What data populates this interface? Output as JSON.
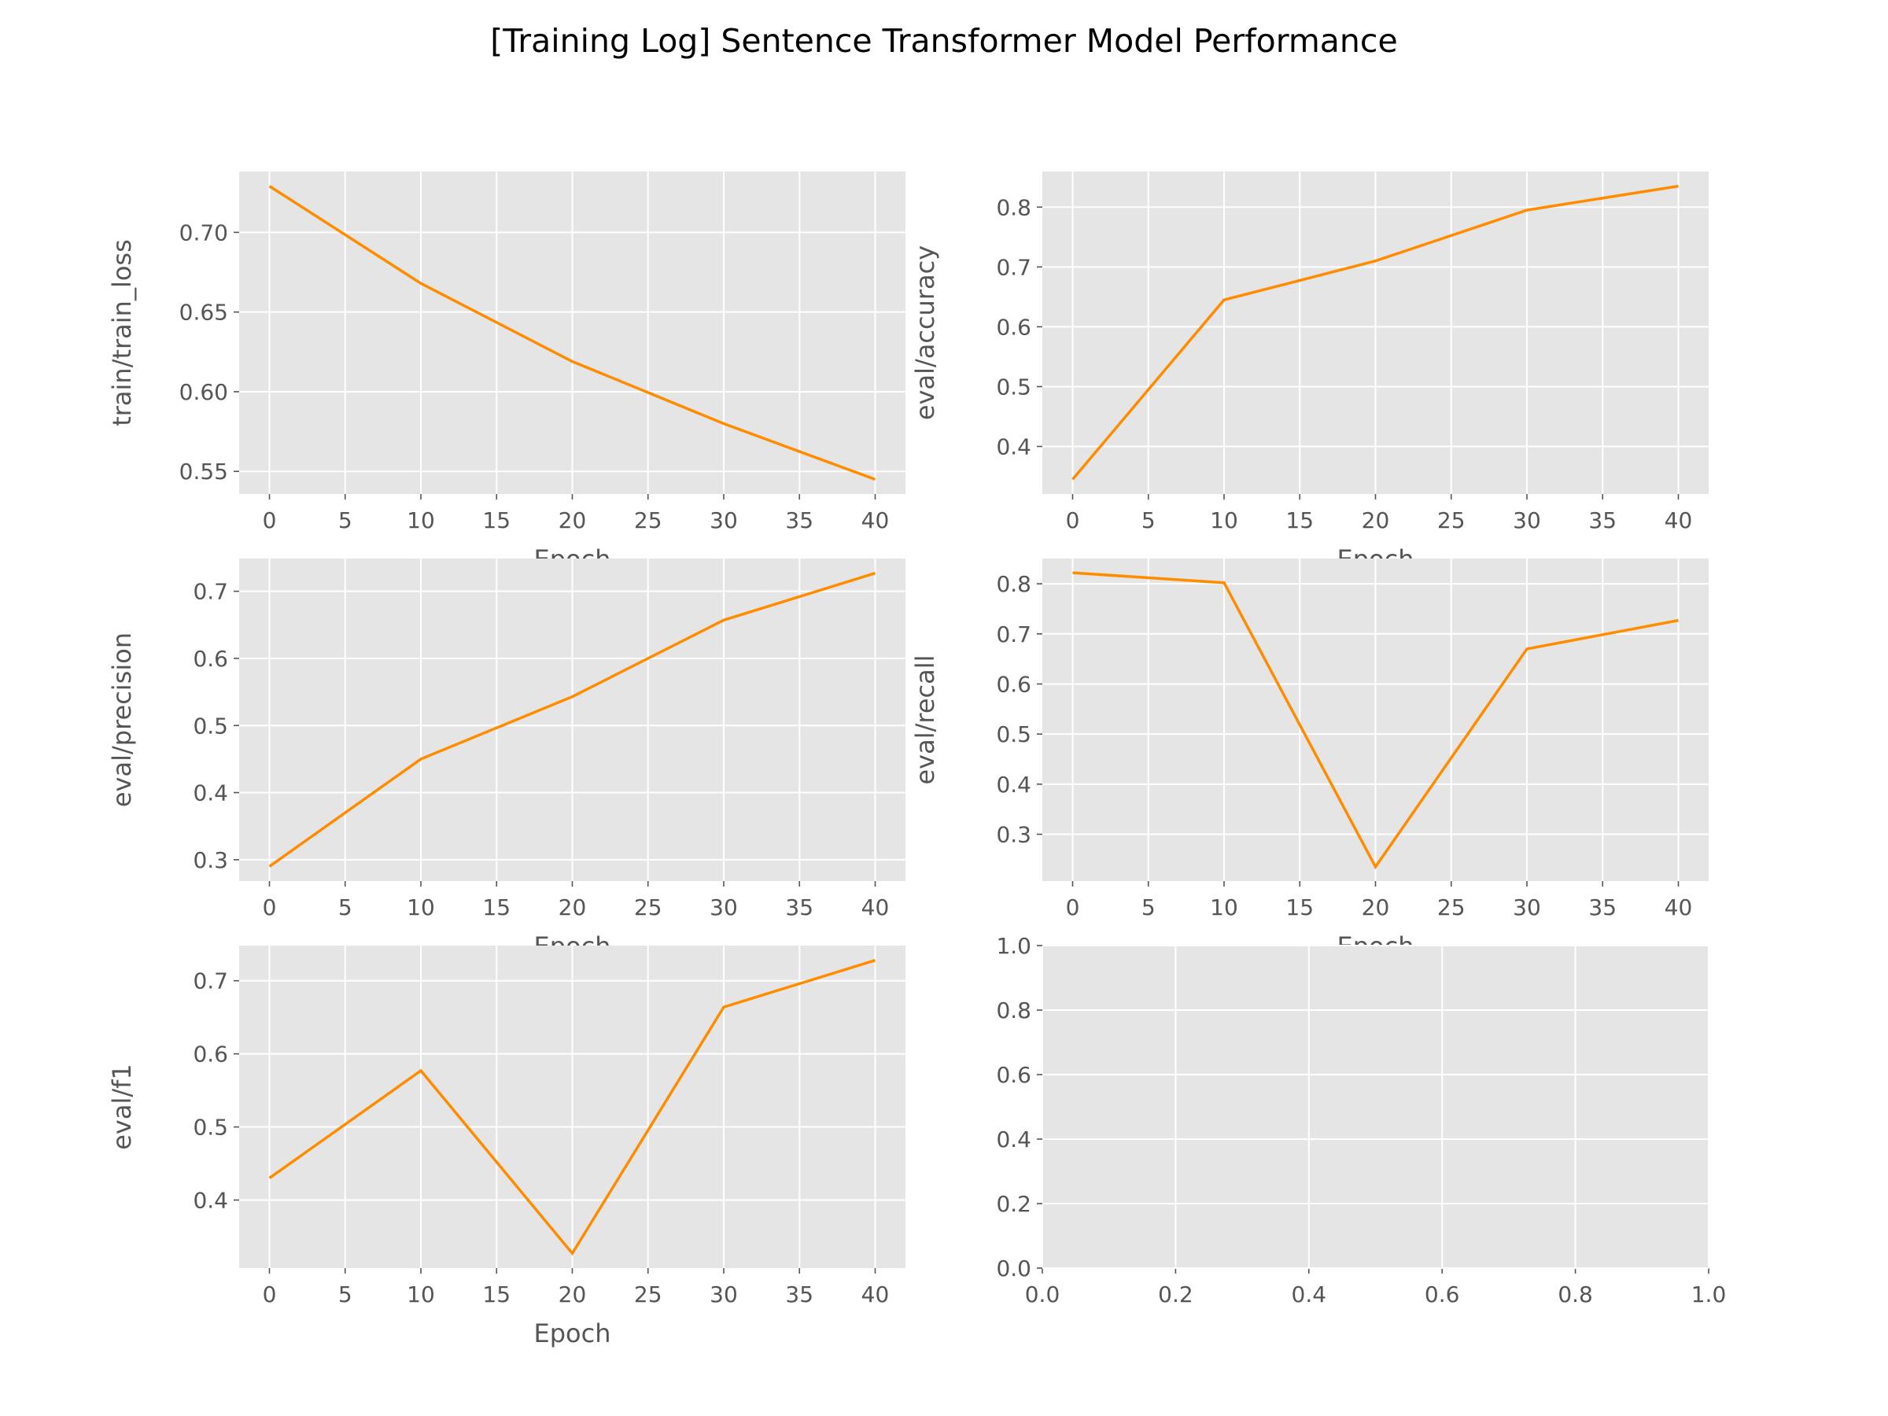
{
  "figure": {
    "title": "[Training Log] Sentence Transformer Model Performance"
  },
  "colors": {
    "line": "#ff8c00",
    "panel_background": "#e5e5e5",
    "grid": "#ffffff",
    "tick_text": "#555555"
  },
  "chart_data": [
    {
      "type": "line",
      "xlabel": "Epoch",
      "ylabel": "train/train_loss",
      "x": [
        0,
        10,
        20,
        30,
        40
      ],
      "series": [
        {
          "values": [
            0.729,
            0.668,
            0.619,
            0.58,
            0.545
          ]
        }
      ],
      "xlim": [
        -2,
        42
      ],
      "ylim": [
        0.5358,
        0.7382
      ],
      "xticks": [
        0,
        5,
        10,
        15,
        20,
        25,
        30,
        35,
        40
      ],
      "yticks": [
        0.55,
        0.6,
        0.65,
        0.7
      ],
      "ytick_labels": [
        "0.55",
        "0.60",
        "0.65",
        "0.70"
      ],
      "grid": true
    },
    {
      "type": "line",
      "xlabel": "Epoch",
      "ylabel": "eval/accuracy",
      "x": [
        0,
        10,
        20,
        30,
        40
      ],
      "series": [
        {
          "values": [
            0.345,
            0.645,
            0.71,
            0.795,
            0.835
          ]
        }
      ],
      "xlim": [
        -2,
        42
      ],
      "ylim": [
        0.3205,
        0.8595
      ],
      "xticks": [
        0,
        5,
        10,
        15,
        20,
        25,
        30,
        35,
        40
      ],
      "yticks": [
        0.4,
        0.5,
        0.6,
        0.7,
        0.8
      ],
      "ytick_labels": [
        "0.4",
        "0.5",
        "0.6",
        "0.7",
        "0.8"
      ],
      "grid": true
    },
    {
      "type": "line",
      "xlabel": "Epoch",
      "ylabel": "eval/precision",
      "x": [
        0,
        10,
        20,
        30,
        40
      ],
      "series": [
        {
          "values": [
            0.29,
            0.45,
            0.543,
            0.657,
            0.727
          ]
        }
      ],
      "xlim": [
        -2,
        42
      ],
      "ylim": [
        0.2682,
        0.7488
      ],
      "xticks": [
        0,
        5,
        10,
        15,
        20,
        25,
        30,
        35,
        40
      ],
      "yticks": [
        0.3,
        0.4,
        0.5,
        0.6,
        0.7
      ],
      "ytick_labels": [
        "0.3",
        "0.4",
        "0.5",
        "0.6",
        "0.7"
      ],
      "grid": true
    },
    {
      "type": "line",
      "xlabel": "Epoch",
      "ylabel": "eval/recall",
      "x": [
        0,
        10,
        20,
        30,
        40
      ],
      "series": [
        {
          "values": [
            0.822,
            0.802,
            0.235,
            0.67,
            0.727
          ]
        }
      ],
      "xlim": [
        -2,
        42
      ],
      "ylim": [
        0.2066,
        0.8504
      ],
      "xticks": [
        0,
        5,
        10,
        15,
        20,
        25,
        30,
        35,
        40
      ],
      "yticks": [
        0.3,
        0.4,
        0.5,
        0.6,
        0.7,
        0.8
      ],
      "ytick_labels": [
        "0.3",
        "0.4",
        "0.5",
        "0.6",
        "0.7",
        "0.8"
      ],
      "grid": true
    },
    {
      "type": "line",
      "xlabel": "Epoch",
      "ylabel": "eval/f1",
      "x": [
        0,
        10,
        20,
        30,
        40
      ],
      "series": [
        {
          "values": [
            0.43,
            0.577,
            0.327,
            0.664,
            0.728
          ]
        }
      ],
      "xlim": [
        -2,
        42
      ],
      "ylim": [
        0.3069,
        0.7481
      ],
      "xticks": [
        0,
        5,
        10,
        15,
        20,
        25,
        30,
        35,
        40
      ],
      "yticks": [
        0.4,
        0.5,
        0.6,
        0.7
      ],
      "ytick_labels": [
        "0.4",
        "0.5",
        "0.6",
        "0.7"
      ],
      "grid": true
    },
    {
      "type": "line",
      "xlabel": "",
      "ylabel": "",
      "x": [],
      "series": [],
      "xlim": [
        0,
        1
      ],
      "ylim": [
        0,
        1
      ],
      "xticks": [
        0,
        0.2,
        0.4,
        0.6,
        0.8,
        1.0
      ],
      "xtick_labels": [
        "0.0",
        "0.2",
        "0.4",
        "0.6",
        "0.8",
        "1.0"
      ],
      "yticks": [
        0,
        0.2,
        0.4,
        0.6,
        0.8,
        1.0
      ],
      "ytick_labels": [
        "0.0",
        "0.2",
        "0.4",
        "0.6",
        "0.8",
        "1.0"
      ],
      "grid": true
    }
  ]
}
